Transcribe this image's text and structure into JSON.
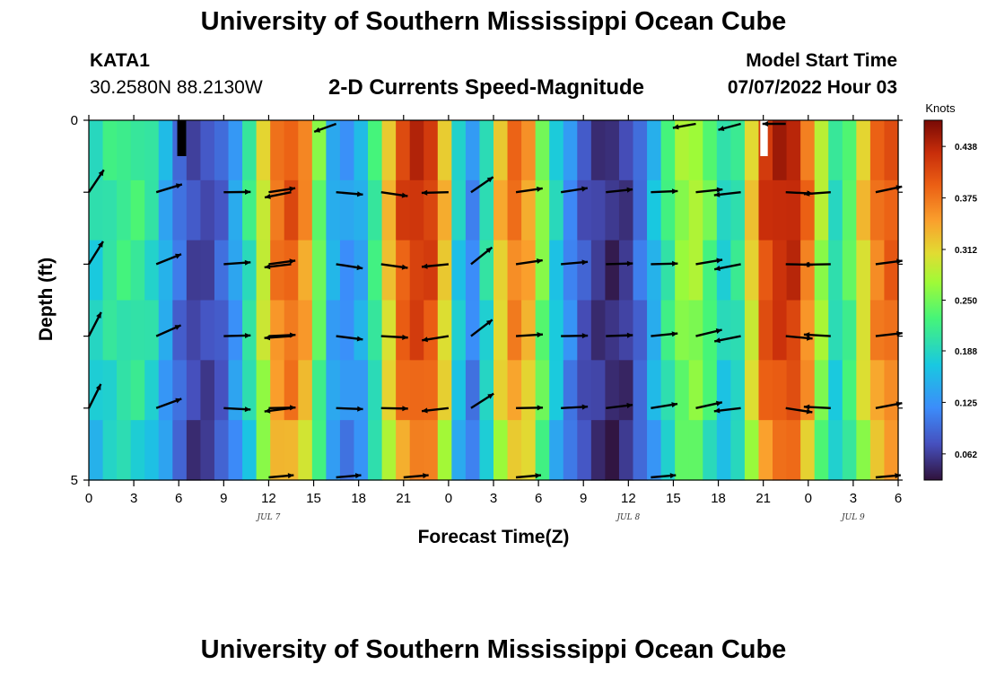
{
  "header": {
    "title": "University of Southern Mississippi Ocean Cube",
    "station_id": "KATA1",
    "coords": "30.2580N  88.2130W",
    "plot_title": "2-D Currents Speed-Magnitude",
    "start_label": "Model Start Time",
    "start_value": "07/07/2022 Hour 03"
  },
  "footer": {
    "title": "University of Southern Mississippi Ocean Cube"
  },
  "chart_data": {
    "type": "heatmap",
    "xlabel": "Forecast Time(Z)",
    "ylabel": "Depth (ft)",
    "x_ticks": [
      "0",
      "3",
      "6",
      "9",
      "12",
      "15",
      "18",
      "21",
      "0",
      "3",
      "6",
      "9",
      "12",
      "15",
      "18",
      "21",
      "0",
      "3",
      "6"
    ],
    "date_labels": [
      {
        "text": "JUL 7",
        "hour": 12
      },
      {
        "text": "JUL 8",
        "hour": 36
      },
      {
        "text": "JUL 9",
        "hour": 51
      }
    ],
    "y_ticks": [
      "0",
      "5"
    ],
    "ylim": [
      0,
      5
    ],
    "xlim_hours": [
      0,
      54
    ],
    "colorbar": {
      "unit": "Knots",
      "ticks": [
        "0.438",
        "0.375",
        "0.312",
        "0.250",
        "0.188",
        "0.125",
        "0.062"
      ],
      "tick_values": [
        0.438,
        0.375,
        0.312,
        0.25,
        0.188,
        0.125,
        0.062
      ],
      "range": [
        0.03,
        0.47
      ]
    },
    "speed_profile_knots": [
      0.19,
      0.21,
      0.22,
      0.22,
      0.2,
      0.15,
      0.1,
      0.07,
      0.07,
      0.09,
      0.14,
      0.21,
      0.3,
      0.38,
      0.4,
      0.36,
      0.25,
      0.15,
      0.13,
      0.15,
      0.22,
      0.33,
      0.41,
      0.43,
      0.42,
      0.33,
      0.18,
      0.12,
      0.2,
      0.33,
      0.38,
      0.35,
      0.26,
      0.18,
      0.12,
      0.08,
      0.06,
      0.05,
      0.06,
      0.1,
      0.16,
      0.22,
      0.27,
      0.28,
      0.24,
      0.19,
      0.21,
      0.32,
      0.42,
      0.44,
      0.44,
      0.38,
      0.28,
      0.2,
      0.24,
      0.32,
      0.38,
      0.4
    ],
    "depth_factors": [
      1.0,
      1.0,
      0.97,
      0.95,
      0.92,
      0.85
    ],
    "vector_depths_ft": [
      1,
      2,
      3,
      4
    ],
    "vector_times_hours": [
      0,
      4.5,
      9,
      12,
      13.5,
      16.5,
      19.5,
      24,
      25.5,
      28.5,
      31.5,
      34.5,
      37.5,
      40.5,
      43.5,
      46.5,
      49.5,
      52.5
    ],
    "vector_angles_deg": [
      -60,
      -20,
      0,
      -5,
      -8,
      5,
      5,
      -5,
      -35,
      -5,
      -5,
      -5,
      -5,
      -10,
      -8,
      5,
      0,
      -10
    ],
    "surface_vectors": [
      {
        "t": 16.5,
        "angle": -20
      },
      {
        "t": 40.5,
        "angle": -10
      },
      {
        "t": 46.5,
        "angle": 0
      },
      {
        "t": 43.5,
        "angle": -15
      }
    ],
    "missing_cells": [
      {
        "t_start": 5.9,
        "t_end": 6.5,
        "color": "#000000"
      },
      {
        "t_start": 44.8,
        "t_end": 45.3,
        "color": "#ffffff"
      }
    ]
  }
}
